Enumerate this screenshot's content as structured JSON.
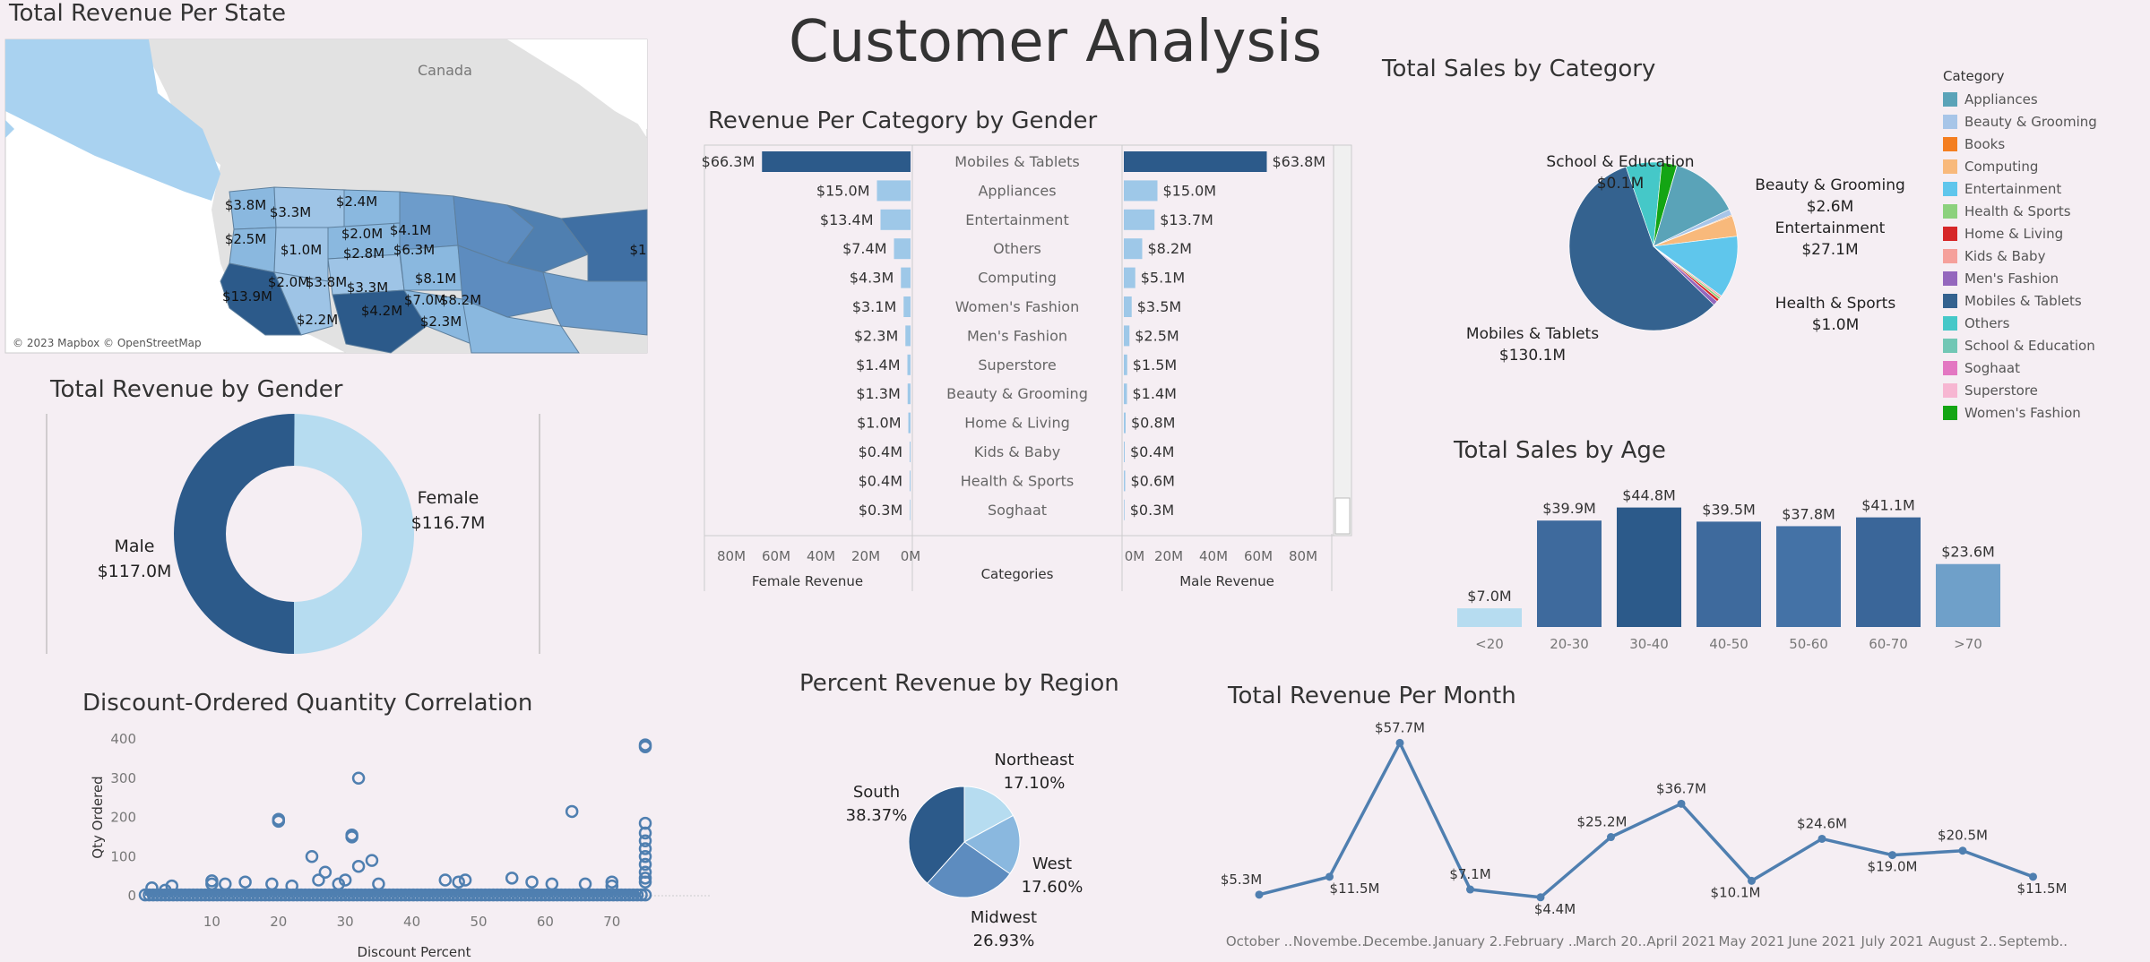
{
  "dashboard": {
    "title": "Customer Analysis"
  },
  "colors": {
    "dark": "#2c5a8a",
    "mid": "#4f7fb0",
    "light": "#b6dcf0",
    "map_ocean": "#ffffff",
    "map_land": "#e2e2e2",
    "map_canada_water": "#a9d2f0"
  },
  "map": {
    "title": "Total Revenue Per State",
    "country_label": "Canada",
    "attribution": "© 2023 Mapbox © OpenStreetMap",
    "state_labels": [
      "$3.8M",
      "$3.3M",
      "$2.4M",
      "$2.5M",
      "$1.0M",
      "$2.0M",
      "$4.1M",
      "$2.8M",
      "$6.3M",
      "$13.9M",
      "$2.0M",
      "$3.8M",
      "$3.3M",
      "$8.1M",
      "$7.0M",
      "$8.2M",
      "$2.2M",
      "$4.2M",
      "$2.3M",
      "$1"
    ]
  },
  "category_gender": {
    "title": "Revenue Per Category by Gender",
    "female_axis_title": "Female Revenue",
    "male_axis_title": "Male Revenue",
    "categories_title": "Categories",
    "axis_ticks": [
      "80M",
      "60M",
      "40M",
      "20M",
      "0M"
    ],
    "male_axis_ticks": [
      "0M",
      "20M",
      "40M",
      "60M",
      "80M"
    ],
    "rows": [
      {
        "category": "Mobiles & Tablets",
        "female": 66.3,
        "female_label": "$66.3M",
        "male": 63.8,
        "male_label": "$63.8M"
      },
      {
        "category": "Appliances",
        "female": 15.0,
        "female_label": "$15.0M",
        "male": 15.0,
        "male_label": "$15.0M"
      },
      {
        "category": "Entertainment",
        "female": 13.4,
        "female_label": "$13.4M",
        "male": 13.7,
        "male_label": "$13.7M"
      },
      {
        "category": "Others",
        "female": 7.4,
        "female_label": "$7.4M",
        "male": 8.2,
        "male_label": "$8.2M"
      },
      {
        "category": "Computing",
        "female": 4.3,
        "female_label": "$4.3M",
        "male": 5.1,
        "male_label": "$5.1M"
      },
      {
        "category": "Women's Fashion",
        "female": 3.1,
        "female_label": "$3.1M",
        "male": 3.5,
        "male_label": "$3.5M"
      },
      {
        "category": "Men's Fashion",
        "female": 2.3,
        "female_label": "$2.3M",
        "male": 2.5,
        "male_label": "$2.5M"
      },
      {
        "category": "Superstore",
        "female": 1.4,
        "female_label": "$1.4M",
        "male": 1.5,
        "male_label": "$1.5M"
      },
      {
        "category": "Beauty & Grooming",
        "female": 1.3,
        "female_label": "$1.3M",
        "male": 1.4,
        "male_label": "$1.4M"
      },
      {
        "category": "Home & Living",
        "female": 1.0,
        "female_label": "$1.0M",
        "male": 0.8,
        "male_label": "$0.8M"
      },
      {
        "category": "Kids & Baby",
        "female": 0.4,
        "female_label": "$0.4M",
        "male": 0.4,
        "male_label": "$0.4M"
      },
      {
        "category": "Health & Sports",
        "female": 0.4,
        "female_label": "$0.4M",
        "male": 0.6,
        "male_label": "$0.6M"
      },
      {
        "category": "Soghaat",
        "female": 0.3,
        "female_label": "$0.3M",
        "male": 0.3,
        "male_label": "$0.3M"
      }
    ]
  },
  "sales_category": {
    "title": "Total Sales by Category",
    "legend_title": "Category",
    "legend": [
      {
        "name": "Appliances",
        "color": "#5aa3b8"
      },
      {
        "name": "Beauty & Grooming",
        "color": "#a7c5e8"
      },
      {
        "name": "Books",
        "color": "#f47e20"
      },
      {
        "name": "Computing",
        "color": "#f8b97b"
      },
      {
        "name": "Entertainment",
        "color": "#5fc6ec"
      },
      {
        "name": "Health & Sports",
        "color": "#8cd17d"
      },
      {
        "name": "Home & Living",
        "color": "#d62728"
      },
      {
        "name": "Kids & Baby",
        "color": "#f5a09b"
      },
      {
        "name": "Men's Fashion",
        "color": "#9467bd"
      },
      {
        "name": "Mobiles & Tablets",
        "color": "#34628f"
      },
      {
        "name": "Others",
        "color": "#45c8c8"
      },
      {
        "name": "School & Education",
        "color": "#72c7b5"
      },
      {
        "name": "Soghaat",
        "color": "#e377c2"
      },
      {
        "name": "Superstore",
        "color": "#f7b6d2"
      },
      {
        "name": "Women's Fashion",
        "color": "#14a514"
      }
    ]
  },
  "chart_data": [
    {
      "type": "pie",
      "title": "Total Revenue by Gender",
      "categories": [
        "Male",
        "Female"
      ],
      "values": [
        117.0,
        116.7
      ],
      "labels": [
        "$117.0M",
        "$116.7M"
      ]
    },
    {
      "type": "bar",
      "title": "Revenue Per Category by Gender",
      "categories": [
        "Mobiles & Tablets",
        "Appliances",
        "Entertainment",
        "Others",
        "Computing",
        "Women's Fashion",
        "Men's Fashion",
        "Superstore",
        "Beauty & Grooming",
        "Home & Living",
        "Kids & Baby",
        "Health & Sports",
        "Soghaat"
      ],
      "series": [
        {
          "name": "Female Revenue",
          "values": [
            66.3,
            15.0,
            13.4,
            7.4,
            4.3,
            3.1,
            2.3,
            1.4,
            1.3,
            1.0,
            0.4,
            0.4,
            0.3
          ]
        },
        {
          "name": "Male Revenue",
          "values": [
            63.8,
            15.0,
            13.7,
            8.2,
            5.1,
            3.5,
            2.5,
            1.5,
            1.4,
            0.8,
            0.4,
            0.6,
            0.3
          ]
        }
      ],
      "xlim": [
        0,
        80
      ]
    },
    {
      "type": "pie",
      "title": "Total Sales by Category",
      "categories": [
        "Mobiles & Tablets",
        "Men's Fashion",
        "Home & Living",
        "Health & Sports",
        "Kids & Baby",
        "Entertainment",
        "Computing",
        "Books",
        "Beauty & Grooming",
        "Appliances",
        "Others",
        "School & Education",
        "Women's Fashion"
      ],
      "values": [
        130.1,
        2.0,
        1.2,
        1.0,
        0.8,
        27.1,
        9.0,
        0.4,
        2.6,
        30.0,
        15.6,
        0.1,
        6.6
      ],
      "labels": [
        {
          "name": "Mobiles & Tablets",
          "value": "$130.1M"
        },
        {
          "name": "Health & Sports",
          "value": "$1.0M"
        },
        {
          "name": "Entertainment",
          "value": "$27.1M"
        },
        {
          "name": "Beauty & Grooming",
          "value": "$2.6M"
        },
        {
          "name": "School & Education",
          "value": "$0.1M"
        }
      ]
    },
    {
      "type": "bar",
      "title": "Total Sales by Age",
      "categories": [
        "<20",
        "20-30",
        "30-40",
        "40-50",
        "50-60",
        "60-70",
        ">70"
      ],
      "values": [
        7.0,
        39.9,
        44.8,
        39.5,
        37.8,
        41.1,
        23.6
      ],
      "labels": [
        "$7.0M",
        "$39.9M",
        "$44.8M",
        "$39.5M",
        "$37.8M",
        "$41.1M",
        "$23.6M"
      ],
      "ylim": [
        0,
        45
      ]
    },
    {
      "type": "scatter",
      "title": "Discount-Ordered Quantity Correlation",
      "xlabel": "Discount Percent",
      "ylabel": "Qty Ordered",
      "xticks": [
        10,
        20,
        30,
        40,
        50,
        60,
        70
      ],
      "yticks": [
        0,
        100,
        200,
        300,
        400
      ],
      "xlim": [
        0,
        75
      ],
      "ylim": [
        0,
        400
      ],
      "outliers": [
        {
          "x": 1,
          "y": 20
        },
        {
          "x": 3,
          "y": 14
        },
        {
          "x": 4,
          "y": 25
        },
        {
          "x": 10,
          "y": 38
        },
        {
          "x": 10,
          "y": 30
        },
        {
          "x": 12,
          "y": 30
        },
        {
          "x": 15,
          "y": 35
        },
        {
          "x": 19,
          "y": 30
        },
        {
          "x": 20,
          "y": 195
        },
        {
          "x": 20,
          "y": 190
        },
        {
          "x": 22,
          "y": 25
        },
        {
          "x": 25,
          "y": 100
        },
        {
          "x": 26,
          "y": 40
        },
        {
          "x": 27,
          "y": 60
        },
        {
          "x": 29,
          "y": 30
        },
        {
          "x": 30,
          "y": 40
        },
        {
          "x": 31,
          "y": 150
        },
        {
          "x": 31,
          "y": 155
        },
        {
          "x": 32,
          "y": 300
        },
        {
          "x": 32,
          "y": 75
        },
        {
          "x": 34,
          "y": 90
        },
        {
          "x": 35,
          "y": 30
        },
        {
          "x": 45,
          "y": 40
        },
        {
          "x": 47,
          "y": 35
        },
        {
          "x": 48,
          "y": 40
        },
        {
          "x": 55,
          "y": 45
        },
        {
          "x": 58,
          "y": 35
        },
        {
          "x": 61,
          "y": 30
        },
        {
          "x": 64,
          "y": 215
        },
        {
          "x": 66,
          "y": 30
        },
        {
          "x": 70,
          "y": 35
        },
        {
          "x": 70,
          "y": 25
        },
        {
          "x": 75,
          "y": 385
        },
        {
          "x": 75,
          "y": 380
        },
        {
          "x": 75,
          "y": 185
        },
        {
          "x": 75,
          "y": 160
        },
        {
          "x": 75,
          "y": 140
        },
        {
          "x": 75,
          "y": 120
        },
        {
          "x": 75,
          "y": 100
        },
        {
          "x": 75,
          "y": 80
        },
        {
          "x": 75,
          "y": 60
        },
        {
          "x": 75,
          "y": 45
        },
        {
          "x": 75,
          "y": 35
        }
      ]
    },
    {
      "type": "pie",
      "title": "Percent Revenue by Region",
      "categories": [
        "South",
        "Northeast",
        "West",
        "Midwest"
      ],
      "values": [
        38.37,
        17.1,
        17.6,
        26.93
      ],
      "labels": [
        "38.37%",
        "17.10%",
        "17.60%",
        "26.93%"
      ]
    },
    {
      "type": "line",
      "title": "Total Revenue Per Month",
      "categories": [
        "October ..",
        "Novembe..",
        "Decembe..",
        "January 2..",
        "February ..",
        "March 20..",
        "April 2021",
        "May 2021",
        "June 2021",
        "July 2021",
        "August 2..",
        "Septemb.."
      ],
      "values": [
        5.3,
        11.5,
        57.7,
        7.1,
        4.4,
        25.2,
        36.7,
        10.1,
        24.6,
        19.0,
        20.5,
        11.5
      ],
      "labels": [
        "$5.3M",
        "$11.5M",
        "$57.7M",
        "$7.1M",
        "$4.4M",
        "$25.2M",
        "$36.7M",
        "$10.1M",
        "$24.6M",
        "$19.0M",
        "$20.5M",
        "$11.5M"
      ],
      "ylim": [
        0,
        60
      ]
    }
  ]
}
